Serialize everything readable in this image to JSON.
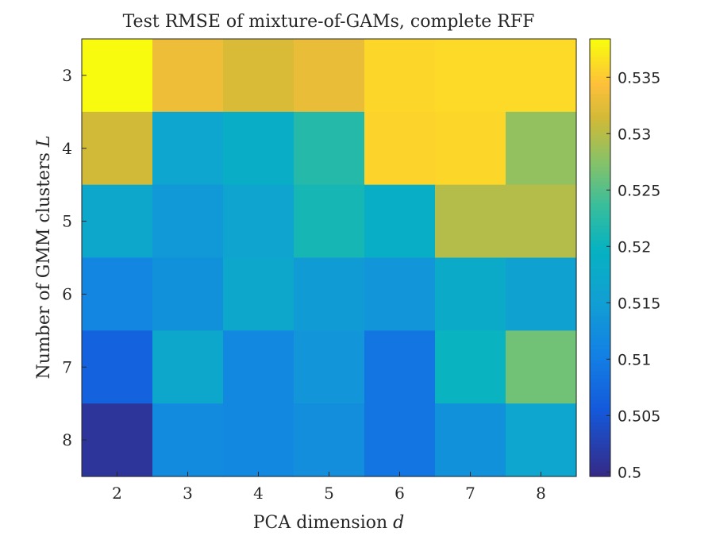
{
  "chart_data": {
    "type": "heatmap",
    "title": "Test RMSE of mixture-of-GAMs, complete RFF",
    "xlabel": "PCA dimension",
    "xlabel_var": "d",
    "ylabel": "Number of GMM clusters",
    "ylabel_var": "L",
    "x": [
      2,
      3,
      4,
      5,
      6,
      7,
      8
    ],
    "y": [
      3,
      4,
      5,
      6,
      7,
      8
    ],
    "values": [
      [
        0.5384,
        0.5335,
        0.532,
        0.5332,
        0.536,
        0.5362,
        0.5362
      ],
      [
        0.5315,
        0.5165,
        0.5185,
        0.5222,
        0.5358,
        0.536,
        0.5282
      ],
      [
        0.5172,
        0.514,
        0.516,
        0.521,
        0.5188,
        0.53,
        0.53
      ],
      [
        0.5112,
        0.513,
        0.517,
        0.5145,
        0.5135,
        0.5178,
        0.5158
      ],
      [
        0.5065,
        0.517,
        0.5115,
        0.5135,
        0.509,
        0.52,
        0.5265
      ],
      [
        0.501,
        0.512,
        0.5115,
        0.5125,
        0.509,
        0.513,
        0.5165
      ]
    ],
    "colorbar": {
      "range": [
        0.4996,
        0.5384
      ],
      "ticks": [
        "0.5",
        "0.505",
        "0.51",
        "0.515",
        "0.52",
        "0.525",
        "0.53",
        "0.535"
      ],
      "tick_values": [
        0.5,
        0.505,
        0.51,
        0.515,
        0.52,
        0.525,
        0.53,
        0.535
      ]
    },
    "colormap": "parula",
    "grid": false
  }
}
